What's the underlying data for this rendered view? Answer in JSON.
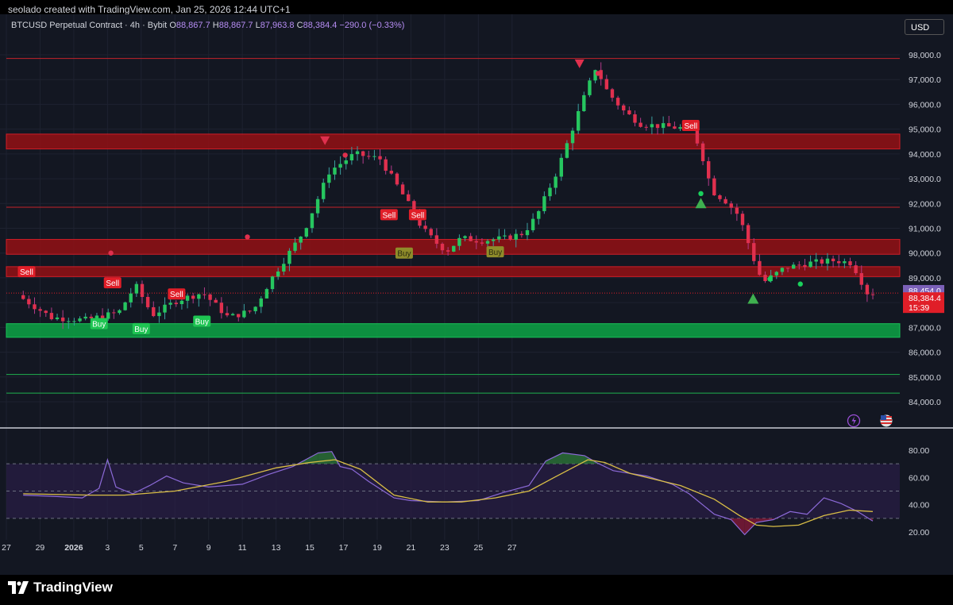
{
  "header": {
    "created_by": "seolado created with TradingView.com, Jan 25, 2026 12:44 UTC+1"
  },
  "legend": {
    "symbol": "BTCUSD Perpetual Contract · 4h · Bybit",
    "o_label": "O",
    "o_value": "88,867.7",
    "h_label": "H",
    "h_value": "88,867.7",
    "l_label": "L",
    "l_value": "87,963.8",
    "c_label": "C",
    "c_value": "88,384.4",
    "change": "−290.0 (−0.33%)"
  },
  "currency": "USD",
  "brand": "TradingView",
  "colors": {
    "background": "#131722",
    "up": "#26c65f",
    "down": "#e0304e",
    "resistance": "#e01e28",
    "support": "#1ad15c",
    "oscillator": "#8c6ad8",
    "signal": "#d9be46"
  },
  "chart_data": {
    "type": "candlestick",
    "title": "BTCUSD Perpetual Contract · 4h · Bybit",
    "price_axis": {
      "ylim": [
        83300,
        98500
      ],
      "ticks": [
        "98,000.0",
        "97,000.0",
        "96,000.0",
        "95,000.0",
        "94,000.0",
        "93,000.0",
        "92,000.0",
        "91,000.0",
        "90,000.0",
        "89,000.0",
        "88,000.0",
        "87,000.0",
        "86,000.0",
        "85,000.0",
        "84,000.0"
      ]
    },
    "x_axis": {
      "ticks": [
        "27",
        "29",
        "2026",
        "3",
        "5",
        "7",
        "9",
        "11",
        "13",
        "15",
        "17",
        "19",
        "21",
        "23",
        "25",
        "27"
      ]
    },
    "price_path": [
      [
        0,
        88300
      ],
      [
        2,
        87400
      ],
      [
        4,
        87300
      ],
      [
        6,
        87600
      ],
      [
        7,
        88700
      ],
      [
        8,
        87500
      ],
      [
        9.5,
        88100
      ],
      [
        11,
        88400
      ],
      [
        12.5,
        87400
      ],
      [
        14,
        87700
      ],
      [
        15,
        88900
      ],
      [
        16,
        89900
      ],
      [
        17,
        90900
      ],
      [
        18.5,
        93300
      ],
      [
        20,
        94000
      ],
      [
        21.5,
        93800
      ],
      [
        23,
        92200
      ],
      [
        24,
        91000
      ],
      [
        25,
        90300
      ],
      [
        25.5,
        90100
      ],
      [
        26.3,
        90600
      ],
      [
        27.5,
        90500
      ],
      [
        29,
        90600
      ],
      [
        30,
        90800
      ],
      [
        30.8,
        91500
      ],
      [
        32,
        93300
      ],
      [
        33.5,
        96100
      ],
      [
        34.3,
        97500
      ],
      [
        35,
        96500
      ],
      [
        36,
        95700
      ],
      [
        37,
        95200
      ],
      [
        38.5,
        95100
      ],
      [
        40,
        95000
      ],
      [
        40.5,
        94200
      ],
      [
        41.2,
        92500
      ],
      [
        42,
        92100
      ],
      [
        42.8,
        91500
      ],
      [
        43.7,
        89700
      ],
      [
        44.2,
        88800
      ],
      [
        45.5,
        89400
      ],
      [
        47,
        89600
      ],
      [
        48.5,
        89700
      ],
      [
        49.5,
        89600
      ],
      [
        50.4,
        88400
      ]
    ],
    "zones": [
      {
        "type": "resistance",
        "low": 94200,
        "high": 94800
      },
      {
        "type": "resistance",
        "low": 89950,
        "high": 90550
      },
      {
        "type": "resistance",
        "low": 89050,
        "high": 89450
      },
      {
        "type": "support",
        "low": 86600,
        "high": 87150
      }
    ],
    "levels": [
      {
        "type": "resistance",
        "price": 97850
      },
      {
        "type": "resistance",
        "price": 91850
      },
      {
        "type": "support",
        "price": 85100
      },
      {
        "type": "support",
        "price": 84350
      }
    ],
    "signals": [
      {
        "label": "Sell",
        "x": 0.2,
        "price": 89250,
        "kind": "sell"
      },
      {
        "label": "Sell",
        "x": 5.3,
        "price": 88800,
        "kind": "sell"
      },
      {
        "label": "Sell",
        "x": 9.1,
        "price": 88350,
        "kind": "sell"
      },
      {
        "label": "Sell",
        "x": 21.7,
        "price": 91550,
        "kind": "sell"
      },
      {
        "label": "Sell",
        "x": 23.4,
        "price": 91550,
        "kind": "sell"
      },
      {
        "label": "Sell",
        "x": 39.6,
        "price": 95150,
        "kind": "sell"
      },
      {
        "label": "Buy",
        "x": 4.5,
        "price": 87150,
        "kind": "buy"
      },
      {
        "label": "Buy",
        "x": 7.0,
        "price": 86950,
        "kind": "buy"
      },
      {
        "label": "Buy",
        "x": 10.6,
        "price": 87250,
        "kind": "buy"
      },
      {
        "label": "Buy",
        "x": 22.6,
        "price": 90000,
        "kind": "buy-dim"
      },
      {
        "label": "Buy",
        "x": 28.0,
        "price": 90050,
        "kind": "buy-dim"
      }
    ],
    "markers": [
      {
        "shape": "triangle-down",
        "x": 17.9,
        "price": 94550,
        "color": "#e0304e"
      },
      {
        "shape": "triangle-down",
        "x": 33.0,
        "price": 97650,
        "color": "#e0304e"
      },
      {
        "shape": "triangle-up",
        "x": 40.2,
        "price": 92000,
        "color": "#3fb04f"
      },
      {
        "shape": "triangle-up",
        "x": 43.3,
        "price": 88150,
        "color": "#3fb04f"
      },
      {
        "shape": "dot",
        "x": 5.2,
        "price": 90000,
        "color": "#e0304e"
      },
      {
        "shape": "dot",
        "x": 13.3,
        "price": 90650,
        "color": "#e0304e"
      },
      {
        "shape": "dot",
        "x": 19.1,
        "price": 93950,
        "color": "#e0304e"
      },
      {
        "shape": "dot",
        "x": 34.1,
        "price": 97250,
        "color": "#e0304e"
      },
      {
        "shape": "dot",
        "x": 40.2,
        "price": 92400,
        "color": "#1ad15c"
      },
      {
        "shape": "dot",
        "x": 44.3,
        "price": 88950,
        "color": "#1ad15c"
      },
      {
        "shape": "dot",
        "x": 46.1,
        "price": 88750,
        "color": "#1ad15c"
      }
    ],
    "price_labels": [
      {
        "text": "88,454.0",
        "price": 88454,
        "color": "#7b61b8"
      },
      {
        "text": "88,384.4",
        "price": 88384.4,
        "color": "#e01e28",
        "countdown": "15:39"
      }
    ],
    "oscillator": {
      "ylim": [
        10,
        90
      ],
      "ticks": [
        "80.00",
        "60.00",
        "40.00",
        "20.00"
      ],
      "upper_band": 70,
      "middle_band": 50,
      "lower_band": 30,
      "line": [
        [
          0,
          47
        ],
        [
          2,
          46
        ],
        [
          3.5,
          45
        ],
        [
          4.5,
          52
        ],
        [
          5,
          73
        ],
        [
          5.5,
          53
        ],
        [
          6.5,
          48
        ],
        [
          7.5,
          54
        ],
        [
          8.5,
          61
        ],
        [
          9.5,
          56
        ],
        [
          11,
          53
        ],
        [
          13,
          55
        ],
        [
          14.5,
          62
        ],
        [
          16,
          68
        ],
        [
          17.5,
          78
        ],
        [
          18.3,
          79
        ],
        [
          18.8,
          68
        ],
        [
          19.5,
          66
        ],
        [
          20.5,
          57
        ],
        [
          22,
          45
        ],
        [
          23,
          43
        ],
        [
          25,
          42
        ],
        [
          27,
          43
        ],
        [
          28.5,
          49
        ],
        [
          30,
          54
        ],
        [
          31,
          72
        ],
        [
          32,
          78
        ],
        [
          33.3,
          76
        ],
        [
          34,
          71
        ],
        [
          35,
          65
        ],
        [
          37,
          61
        ],
        [
          38.5,
          55
        ],
        [
          39.5,
          48
        ],
        [
          40.3,
          40
        ],
        [
          41,
          33
        ],
        [
          42,
          29
        ],
        [
          42.8,
          18
        ],
        [
          43.5,
          27
        ],
        [
          44.5,
          29
        ],
        [
          45.5,
          35
        ],
        [
          46.5,
          33
        ],
        [
          47.5,
          45
        ],
        [
          48.5,
          41
        ],
        [
          49.5,
          35
        ],
        [
          50.4,
          28
        ]
      ],
      "signal": [
        [
          0,
          48
        ],
        [
          4,
          47
        ],
        [
          6,
          47
        ],
        [
          9,
          50
        ],
        [
          12,
          57
        ],
        [
          15,
          67
        ],
        [
          17,
          71
        ],
        [
          18.5,
          73
        ],
        [
          20,
          66
        ],
        [
          22,
          47
        ],
        [
          24,
          42
        ],
        [
          26,
          42
        ],
        [
          28,
          45
        ],
        [
          30,
          50
        ],
        [
          31.5,
          60
        ],
        [
          33.5,
          73
        ],
        [
          34.5,
          71
        ],
        [
          36,
          63
        ],
        [
          39,
          54
        ],
        [
          41,
          44
        ],
        [
          42.5,
          32
        ],
        [
          43.5,
          25
        ],
        [
          44.5,
          24
        ],
        [
          46,
          25
        ],
        [
          47.5,
          32
        ],
        [
          49,
          36
        ],
        [
          50.4,
          35
        ]
      ]
    }
  }
}
